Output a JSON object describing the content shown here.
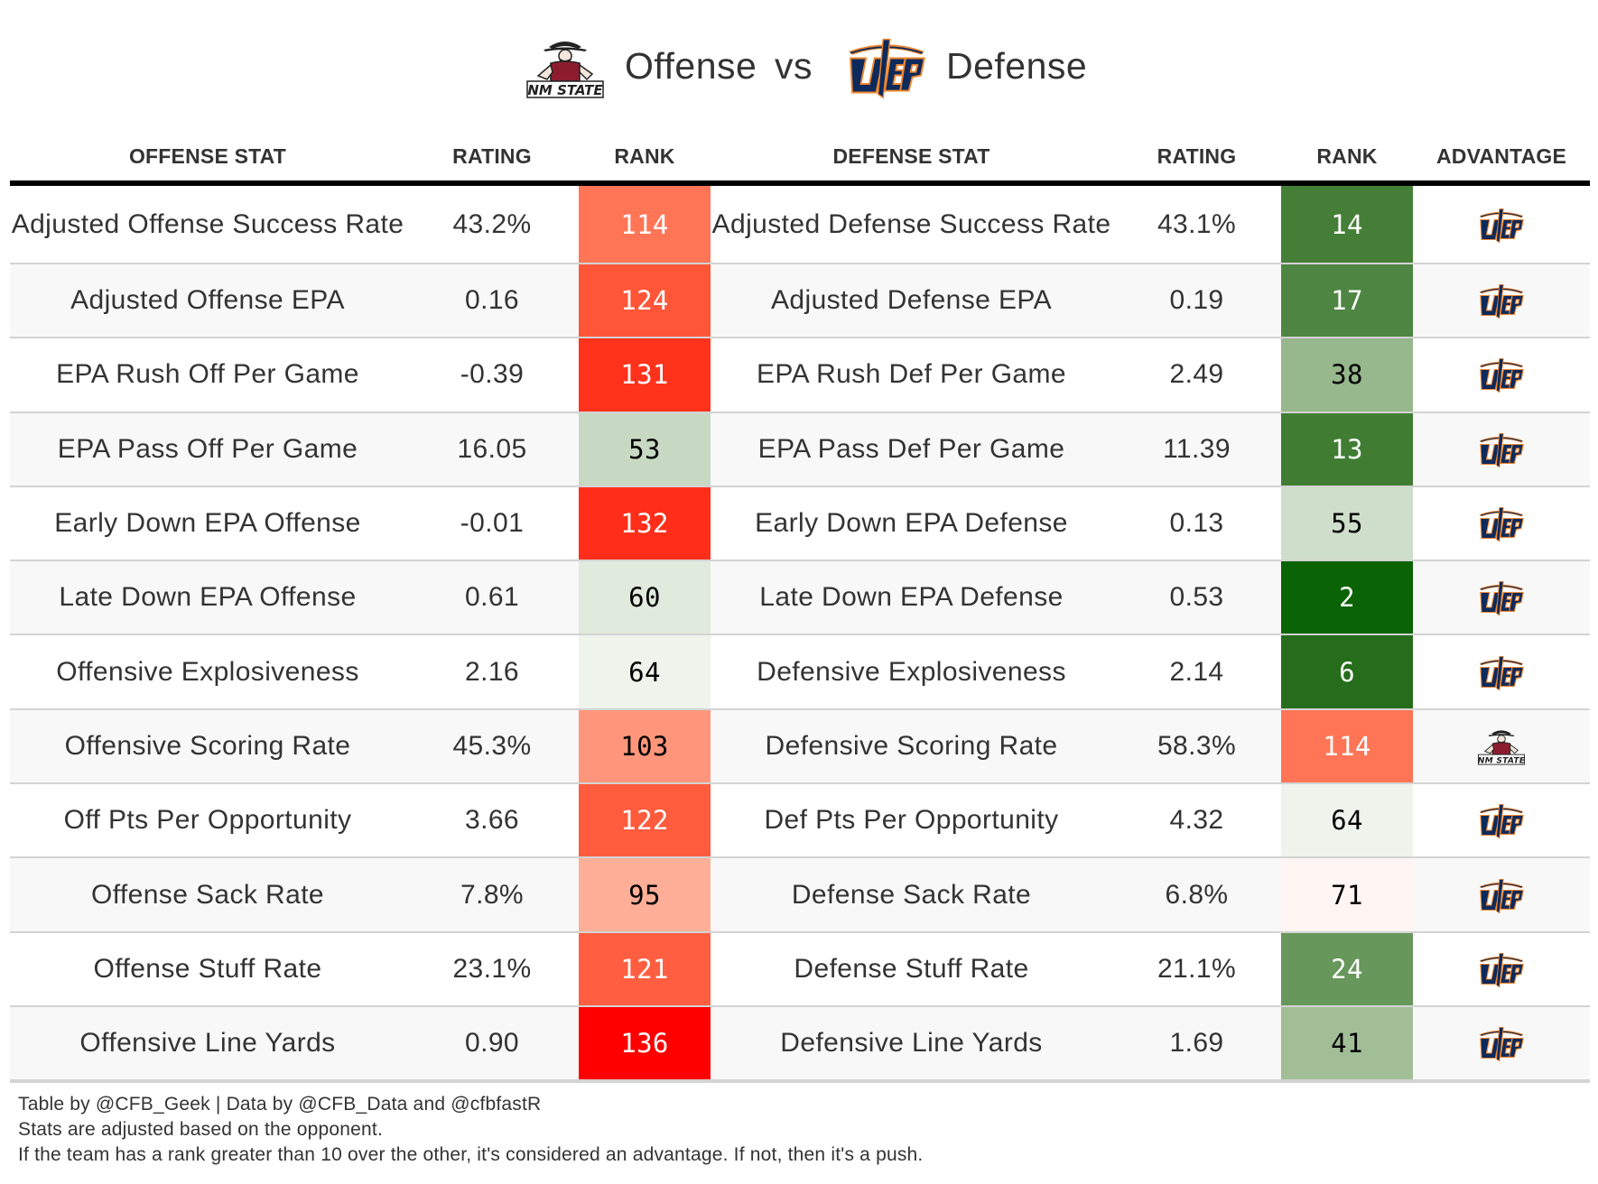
{
  "title": {
    "offense_team": "NM State",
    "offense_label": "Offense",
    "vs_label": "vs",
    "defense_team": "UTEP",
    "defense_label": "Defense",
    "offense_logo_text": "NM STATE",
    "defense_logo_text": "UTEP"
  },
  "colors": {
    "utep_navy": "#0d2a5c",
    "utep_orange": "#f0852d",
    "nmsu_crimson": "#8c1d2f"
  },
  "chart_data": {
    "type": "table",
    "title": "NM State Offense vs UTEP Defense",
    "columns": [
      "OFFENSE STAT",
      "RATING",
      "RANK",
      "DEFENSE STAT",
      "RATING",
      "RANK",
      "ADVANTAGE"
    ],
    "rows": [
      {
        "offense_stat": "Adjusted Offense Success Rate",
        "offense_rating": "43.2%",
        "offense_rank": 114,
        "offense_rank_color": "#ff7556",
        "offense_rank_text": "#ffffff",
        "defense_stat": "Adjusted Defense Success Rate",
        "defense_rating": "43.1%",
        "defense_rank": 14,
        "defense_rank_color": "#457f37",
        "defense_rank_text": "#ffffff",
        "advantage": "UTEP"
      },
      {
        "offense_stat": "Adjusted Offense EPA",
        "offense_rating": "0.16",
        "offense_rank": 124,
        "offense_rank_color": "#ff5637",
        "offense_rank_text": "#ffffff",
        "defense_stat": "Adjusted Defense EPA",
        "defense_rating": "0.19",
        "defense_rank": 17,
        "defense_rank_color": "#4e8542",
        "defense_rank_text": "#ffffff",
        "advantage": "UTEP"
      },
      {
        "offense_stat": "EPA Rush Off Per Game",
        "offense_rating": "-0.39",
        "offense_rank": 131,
        "offense_rank_color": "#ff321c",
        "offense_rank_text": "#ffffff",
        "defense_stat": "EPA Rush Def Per Game",
        "defense_rating": "2.49",
        "defense_rank": 38,
        "defense_rank_color": "#97b78c",
        "defense_rank_text": "#000000",
        "advantage": "UTEP"
      },
      {
        "offense_stat": "EPA Pass Off Per Game",
        "offense_rating": "16.05",
        "offense_rank": 53,
        "offense_rank_color": "#c8d9c3",
        "offense_rank_text": "#000000",
        "defense_stat": "EPA Pass Def Per Game",
        "defense_rating": "11.39",
        "defense_rank": 13,
        "defense_rank_color": "#407d33",
        "defense_rank_text": "#ffffff",
        "advantage": "UTEP"
      },
      {
        "offense_stat": "Early Down EPA Offense",
        "offense_rating": "-0.01",
        "offense_rank": 132,
        "offense_rank_color": "#ff2e1a",
        "offense_rank_text": "#ffffff",
        "defense_stat": "Early Down EPA Defense",
        "defense_rating": "0.13",
        "defense_rank": 55,
        "defense_rank_color": "#cfdecb",
        "defense_rank_text": "#000000",
        "advantage": "UTEP"
      },
      {
        "offense_stat": "Late Down EPA Offense",
        "offense_rating": "0.61",
        "offense_rank": 60,
        "offense_rank_color": "#e0eadd",
        "offense_rank_text": "#000000",
        "defense_stat": "Late Down EPA Defense",
        "defense_rating": "0.53",
        "defense_rank": 2,
        "defense_rank_color": "#0a6304",
        "defense_rank_text": "#ffffff",
        "advantage": "UTEP"
      },
      {
        "offense_stat": "Offensive Explosiveness",
        "offense_rating": "2.16",
        "offense_rank": 64,
        "offense_rank_color": "#eef3ec",
        "offense_rank_text": "#000000",
        "defense_stat": "Defensive Explosiveness",
        "defense_rating": "2.14",
        "defense_rank": 6,
        "defense_rank_color": "#256d1b",
        "defense_rank_text": "#ffffff",
        "advantage": "UTEP"
      },
      {
        "offense_stat": "Offensive Scoring Rate",
        "offense_rating": "45.3%",
        "offense_rank": 103,
        "offense_rank_color": "#ff967b",
        "offense_rank_text": "#000000",
        "defense_stat": "Defensive Scoring Rate",
        "defense_rating": "58.3%",
        "defense_rank": 114,
        "defense_rank_color": "#ff7556",
        "defense_rank_text": "#ffffff",
        "advantage": "NM State"
      },
      {
        "offense_stat": "Off Pts Per Opportunity",
        "offense_rating": "3.66",
        "offense_rank": 122,
        "offense_rank_color": "#ff5b3d",
        "offense_rank_text": "#ffffff",
        "defense_stat": "Def Pts Per Opportunity",
        "defense_rating": "4.32",
        "defense_rank": 64,
        "defense_rank_color": "#eef3ec",
        "defense_rank_text": "#000000",
        "advantage": "UTEP"
      },
      {
        "offense_stat": "Offense Sack Rate",
        "offense_rating": "7.8%",
        "offense_rank": 95,
        "offense_rank_color": "#ffae97",
        "offense_rank_text": "#000000",
        "defense_stat": "Defense Sack Rate",
        "defense_rating": "6.8%",
        "defense_rank": 71,
        "defense_rank_color": "#fff5f2",
        "defense_rank_text": "#000000",
        "advantage": "UTEP"
      },
      {
        "offense_stat": "Offense Stuff Rate",
        "offense_rating": "23.1%",
        "offense_rank": 121,
        "offense_rank_color": "#ff5e41",
        "offense_rank_text": "#ffffff",
        "defense_stat": "Defense Stuff Rate",
        "defense_rating": "21.1%",
        "defense_rank": 24,
        "defense_rank_color": "#67975b",
        "defense_rank_text": "#ffffff",
        "advantage": "UTEP"
      },
      {
        "offense_stat": "Offensive Line Yards",
        "offense_rating": "0.90",
        "offense_rank": 136,
        "offense_rank_color": "#ff0000",
        "offense_rank_text": "#ffffff",
        "defense_stat": "Defensive Line Yards",
        "defense_rating": "1.69",
        "defense_rank": 41,
        "defense_rank_color": "#a2be97",
        "defense_rank_text": "#000000",
        "advantage": "UTEP"
      }
    ]
  },
  "footnotes": [
    "Table by @CFB_Geek | Data by @CFB_Data and @cfbfastR",
    "Stats are adjusted based on the opponent.",
    "If the team has a rank greater than 10 over the other, it's considered an advantage. If not, then it's a push."
  ]
}
